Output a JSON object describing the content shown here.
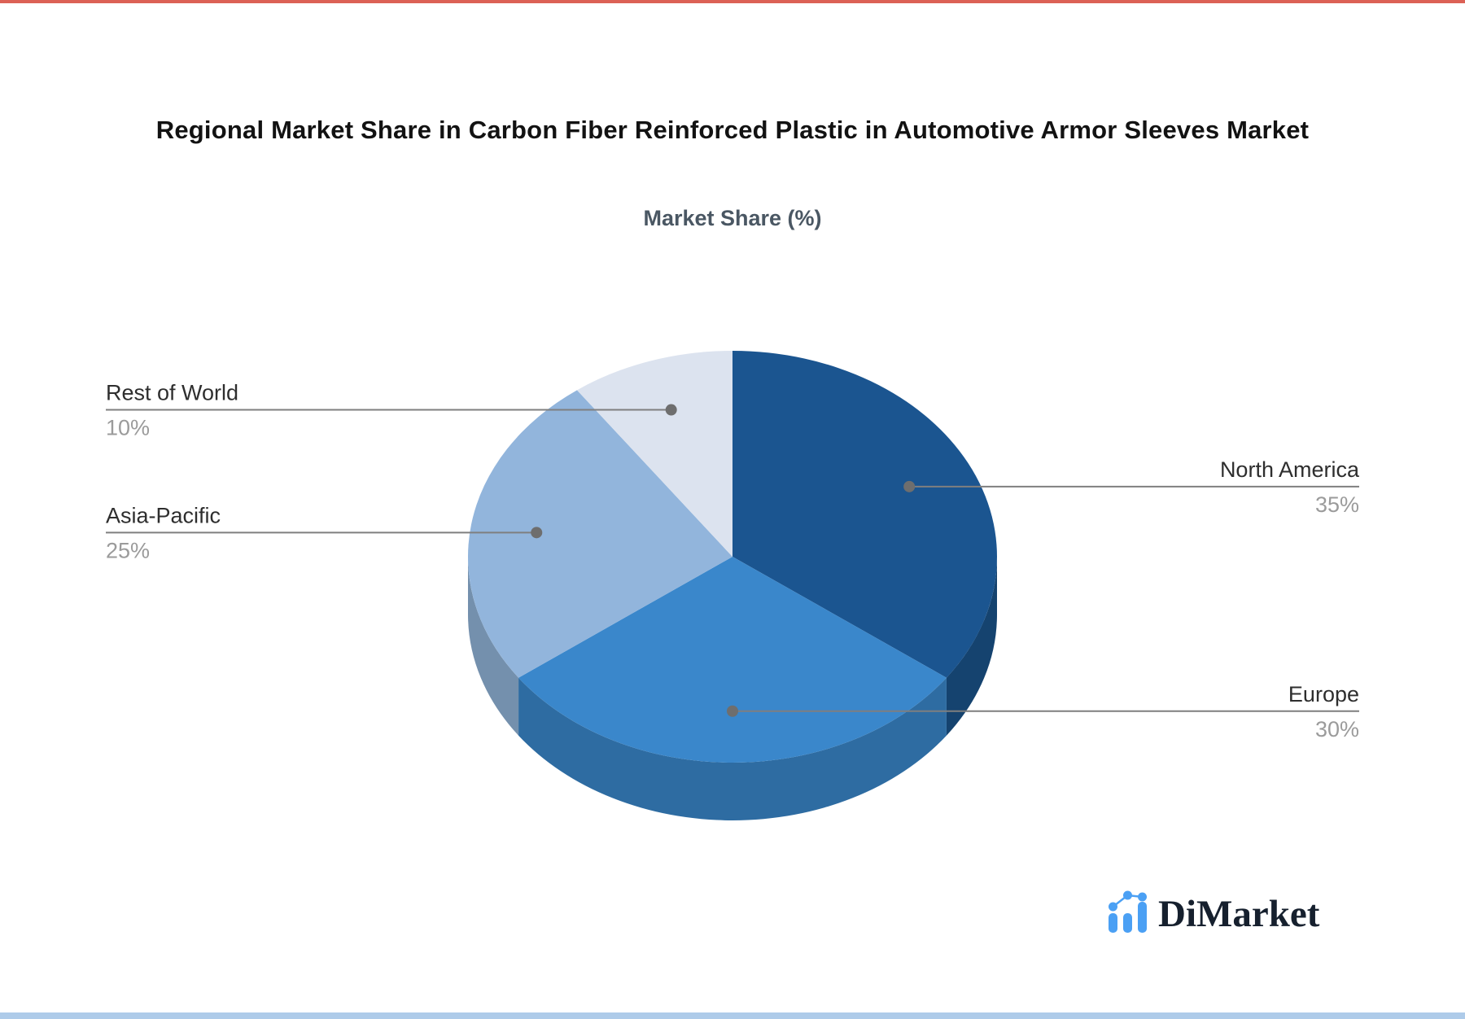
{
  "page": {
    "background": "#FFFFFF",
    "top_strip_color": "#DC6156",
    "bottom_strip_color": "#AECBE9"
  },
  "chart_data": {
    "type": "pie",
    "title": "Regional Market Share in Carbon Fiber Reinforced Plastic in Automotive Armor Sleeves Market",
    "subtitle": "Market Share (%)",
    "unit": "%",
    "effect_3d": true,
    "start_angle_deg": 0,
    "direction": "clockwise",
    "legend_position": "none",
    "slices": [
      {
        "label": "North America",
        "value": 35,
        "display": "35%",
        "color": "#1B5590",
        "side_color": "#15436F",
        "label_side": "right"
      },
      {
        "label": "Europe",
        "value": 30,
        "display": "30%",
        "color": "#3A87CB",
        "side_color": "#2E6CA2",
        "label_side": "right"
      },
      {
        "label": "Asia-Pacific",
        "value": 25,
        "display": "25%",
        "color": "#92B5DC",
        "side_color": "#7490AD",
        "label_side": "left"
      },
      {
        "label": "Rest of World",
        "value": 10,
        "display": "10%",
        "color": "#DCE3EF",
        "side_color": "#B9C5D8",
        "label_side": "left"
      }
    ],
    "label_text_color": "#2E2E2E",
    "percent_text_color": "#9B9B9B",
    "connector_color": "#7F7F7F",
    "connector_dot_color": "#6E6E6E"
  },
  "logo": {
    "text": "DiMarket",
    "icon": "bar-chart-logo-icon",
    "icon_color": "#4BA0F4",
    "text_color": "#16202E"
  }
}
